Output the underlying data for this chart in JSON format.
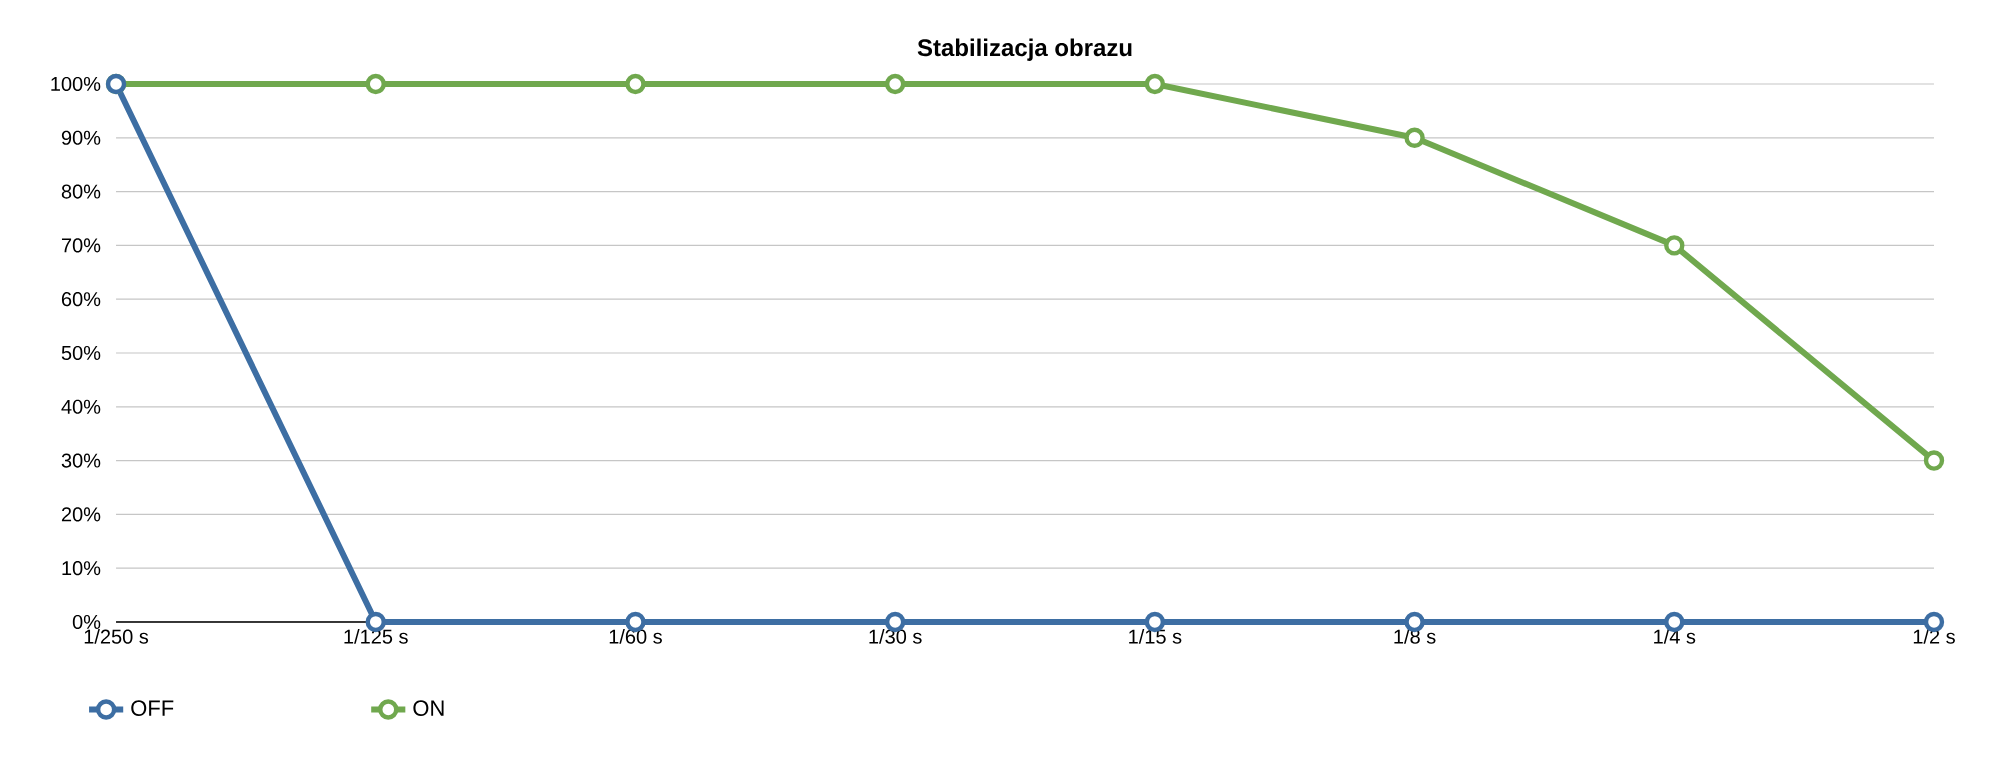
{
  "chart_data": {
    "type": "line",
    "title": "Stabilizacja obrazu",
    "categories": [
      "1/250 s",
      "1/125 s",
      "1/60 s",
      "1/30 s",
      "1/15 s",
      "1/8 s",
      "1/4 s",
      "1/2 s"
    ],
    "series": [
      {
        "name": "OFF",
        "color": "#3d6ea3",
        "values": [
          100,
          0,
          0,
          0,
          0,
          0,
          0,
          0
        ]
      },
      {
        "name": "ON",
        "color": "#70a84e",
        "values": [
          100,
          100,
          100,
          100,
          100,
          90,
          70,
          30
        ]
      }
    ],
    "ylim": [
      0,
      100
    ],
    "yticks": [
      {
        "value": 0,
        "label": "0%"
      },
      {
        "value": 10,
        "label": "10%"
      },
      {
        "value": 20,
        "label": "20%"
      },
      {
        "value": 30,
        "label": "30%"
      },
      {
        "value": 40,
        "label": "40%"
      },
      {
        "value": 50,
        "label": "50%"
      },
      {
        "value": 60,
        "label": "60%"
      },
      {
        "value": 70,
        "label": "70%"
      },
      {
        "value": 80,
        "label": "80%"
      },
      {
        "value": 90,
        "label": "90%"
      },
      {
        "value": 100,
        "label": "100%"
      }
    ],
    "grid": "y",
    "legend": "bottom left",
    "marker": "circle"
  }
}
